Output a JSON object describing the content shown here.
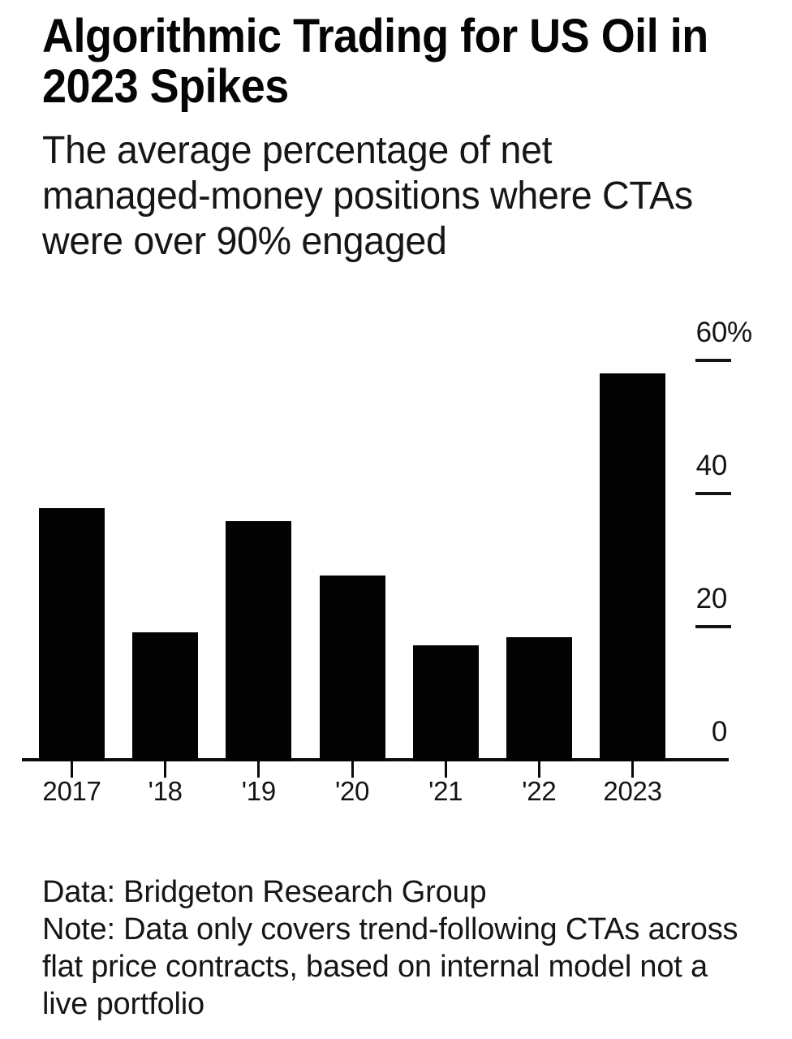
{
  "header": {
    "title": "Algorithmic Trading for US Oil in 2023 Spikes",
    "title_lines": [
      "Algorithmic Trading for US Oil in",
      "2023 Spikes"
    ],
    "subtitle": "The average percentage of net managed-money positions where CTAs were over 90% engaged",
    "subtitle_lines": [
      "The average percentage of net",
      "managed-money positions where CTAs",
      "were over 90% engaged"
    ]
  },
  "chart_data": {
    "type": "bar",
    "title": "Algorithmic Trading for US Oil in 2023 Spikes",
    "subtitle": "The average percentage of net managed-money positions where CTAs were over 90% engaged",
    "categories": [
      "2017",
      "'18",
      "'19",
      "'20",
      "'21",
      "'22",
      "2023"
    ],
    "values": [
      37.8,
      19.1,
      35.9,
      27.7,
      17.2,
      18.4,
      58.1
    ],
    "unit": "%",
    "xlabel": "",
    "ylabel": "",
    "ylim": [
      0,
      65
    ],
    "y_ticks": [
      0,
      20,
      40,
      60
    ],
    "y_tick_labels": [
      "0",
      "20",
      "40",
      "60%"
    ],
    "y_axis_position": "right",
    "grid": false,
    "legend": null,
    "bar_color": "#030303",
    "background_color": "#ffffff"
  },
  "footer": {
    "source": "Data: Bridgeton Research Group",
    "note": "Note: Data only covers trend-following CTAs across flat price contracts, based on internal model not a live portfolio",
    "lines": [
      "Data: Bridgeton Research Group",
      "Note: Data only covers trend-following CTAs across",
      "flat price contracts, based on internal model not a",
      "live portfolio"
    ]
  }
}
